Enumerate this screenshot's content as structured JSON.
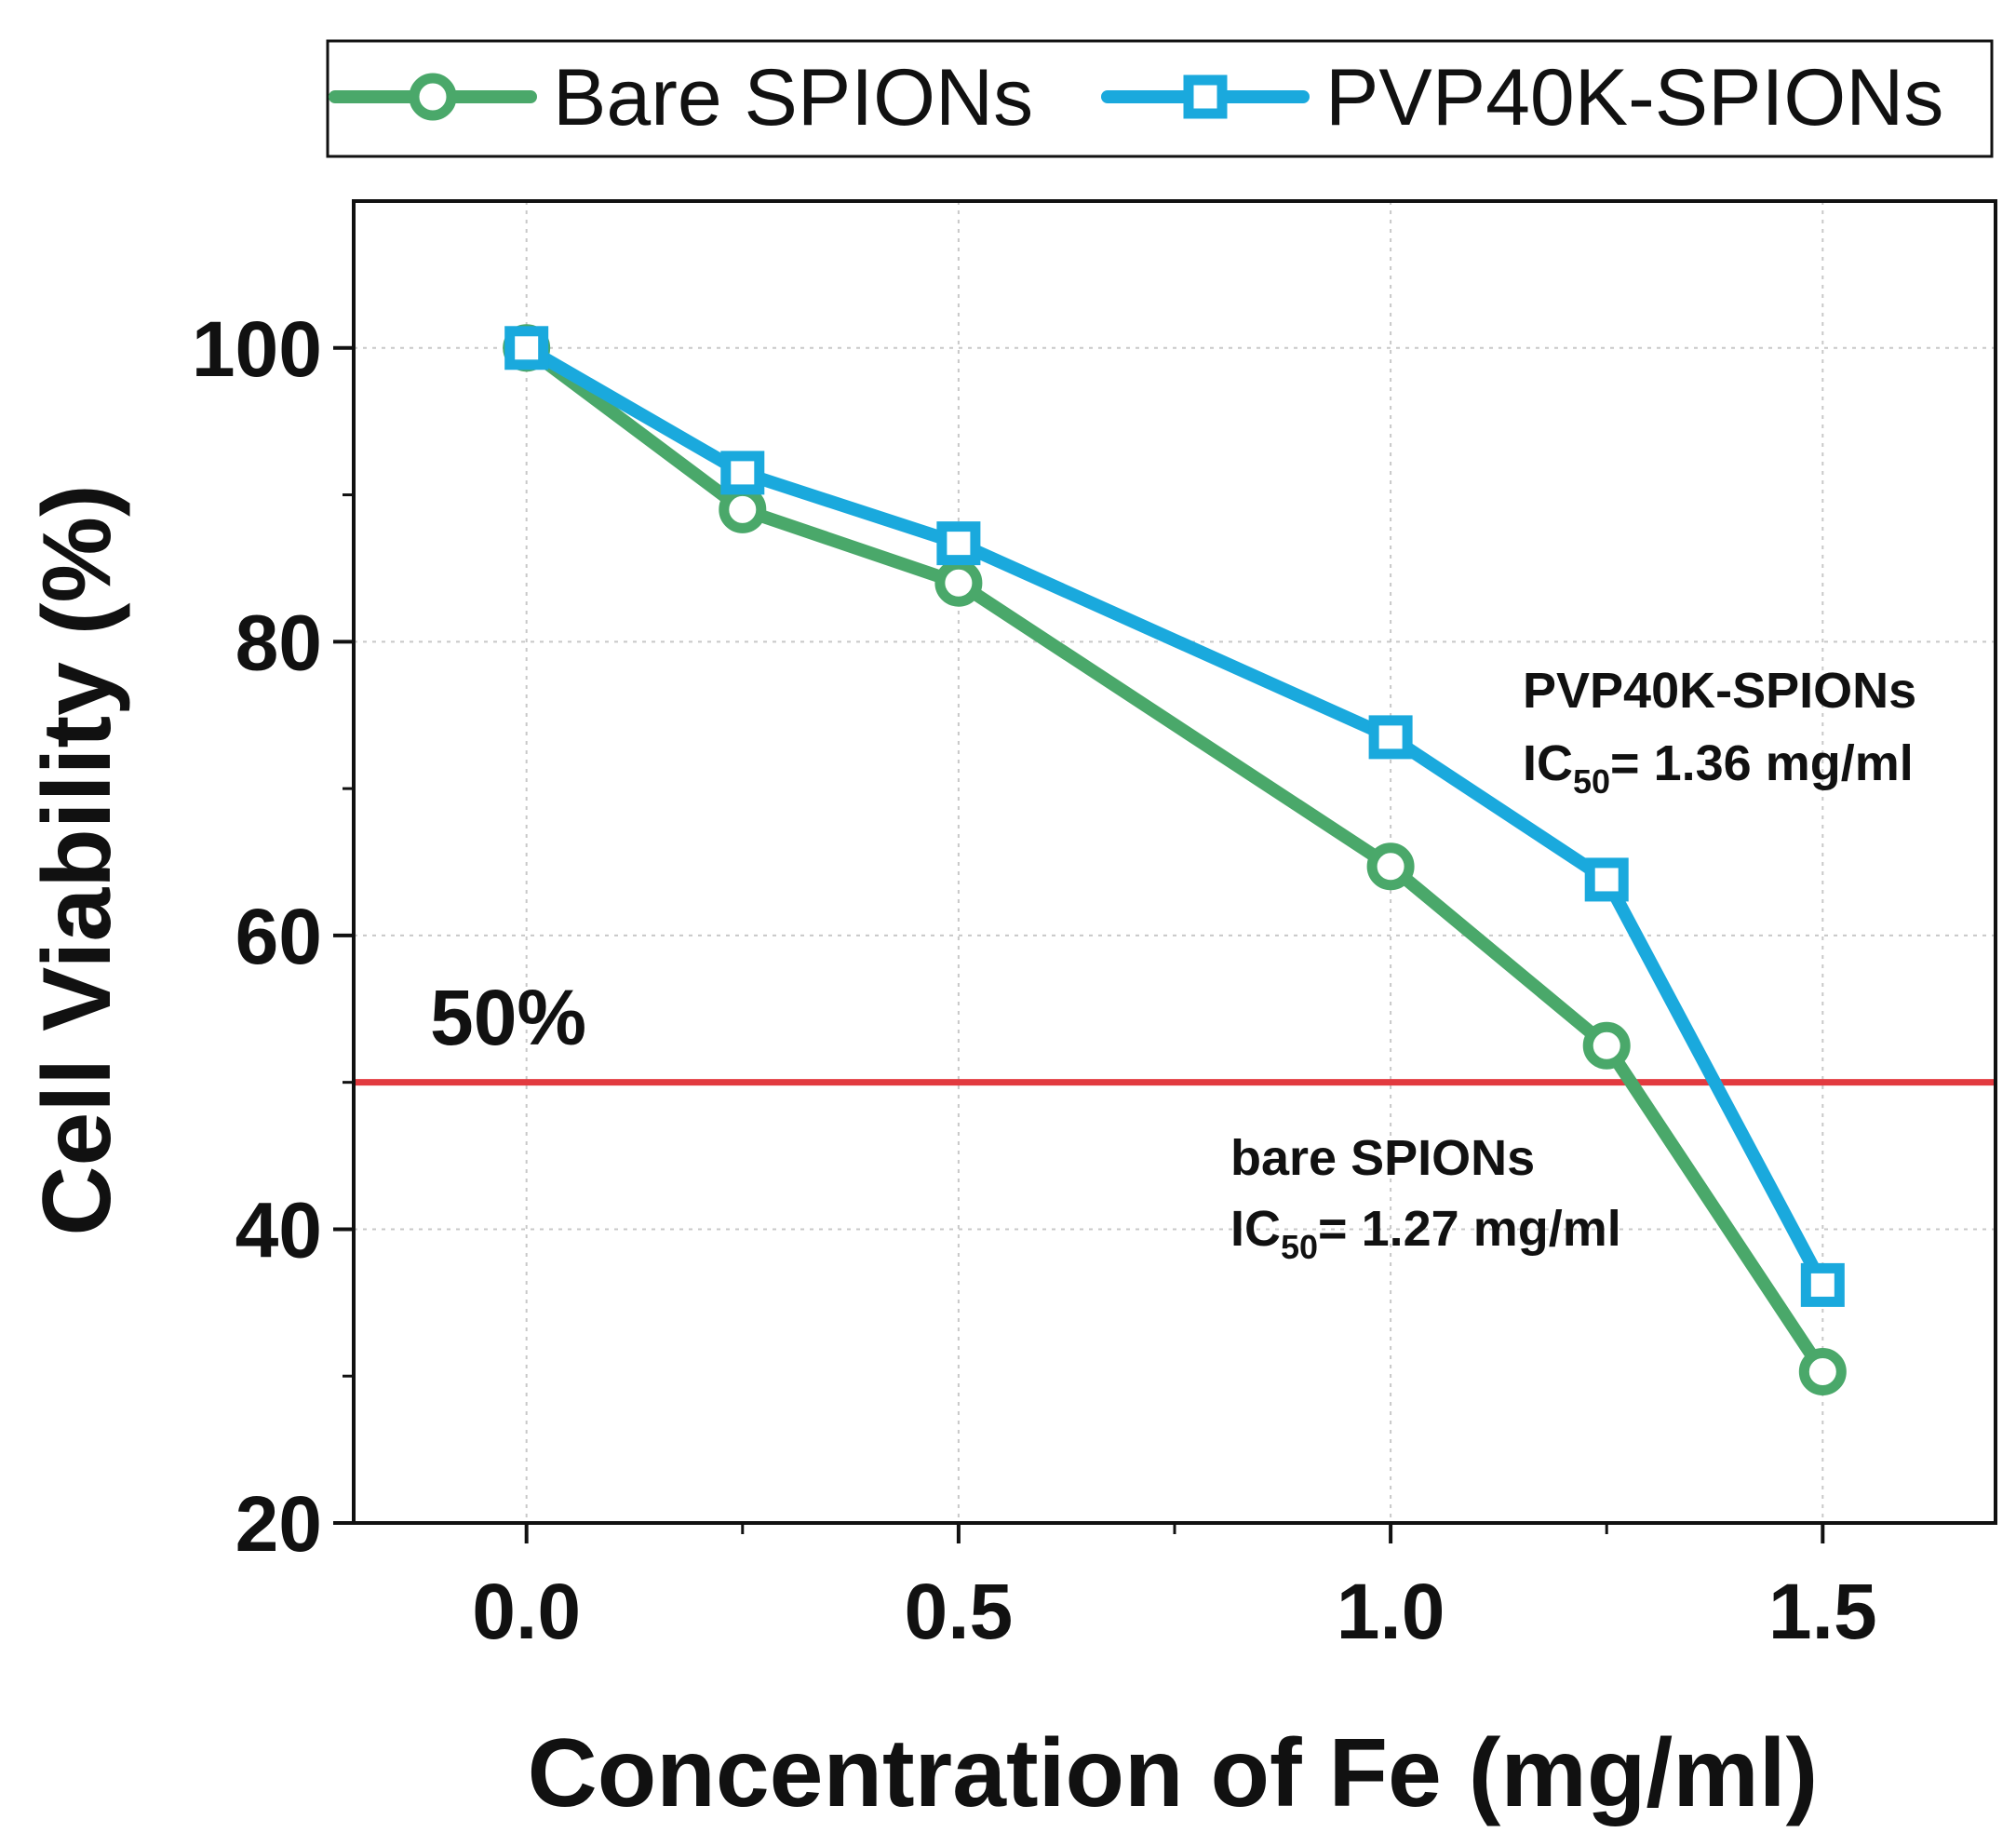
{
  "chart_data": {
    "type": "line",
    "title": "",
    "xlabel": "Concentration of Fe (mg/ml)",
    "ylabel": "Cell Viability (%)",
    "xlim": [
      -0.2,
      1.7
    ],
    "ylim": [
      20,
      110
    ],
    "xticks": [
      0.0,
      0.5,
      1.0,
      1.5
    ],
    "xtick_labels": [
      "0.0",
      "0.5",
      "1.0",
      "1.5"
    ],
    "xminor": [
      0.25,
      0.75,
      1.25
    ],
    "yticks": [
      20,
      40,
      60,
      80,
      100
    ],
    "ytick_labels": [
      "20",
      "40",
      "60",
      "80",
      "100"
    ],
    "yminor": [
      30,
      50,
      70,
      90
    ],
    "grid": true,
    "legend_position": "top, outside plot",
    "series": [
      {
        "name": "Bare SPIONs",
        "color": "#4aa86a",
        "marker": "circle",
        "x": [
          0.0,
          0.25,
          0.5,
          1.0,
          1.25,
          1.5
        ],
        "y": [
          100,
          89,
          84,
          64.7,
          52.5,
          30.3
        ]
      },
      {
        "name": "PVP40K-SPIONs",
        "color": "#1aa9dd",
        "marker": "square",
        "x": [
          0.0,
          0.25,
          0.5,
          1.0,
          1.25,
          1.5
        ],
        "y": [
          100,
          91.5,
          86.7,
          73.5,
          63.8,
          36.2
        ]
      }
    ],
    "reference_line": {
      "y": 50,
      "label": "50%",
      "color": "#e23a3f"
    },
    "annotations": [
      {
        "line1": "PVP40K-SPIONs",
        "ic_prefix": "IC",
        "ic_sub": "50",
        "ic_value": "= 1.36 mg/ml"
      },
      {
        "line1": "bare SPIONs",
        "ic_prefix": "IC",
        "ic_sub": "50",
        "ic_value": "= 1.27 mg/ml"
      }
    ]
  }
}
